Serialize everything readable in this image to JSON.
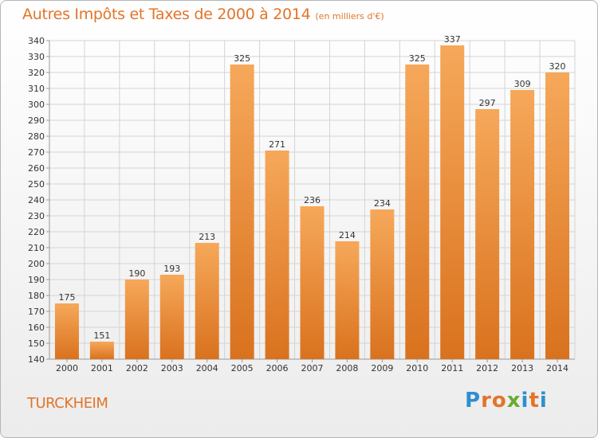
{
  "header": {
    "title": "Autres Impôts et Taxes de 2000 à 2014",
    "unit": "(en milliers d'€)"
  },
  "footer": {
    "commune": "TURCKHEIM",
    "logo_letters": [
      "P",
      "r",
      "o",
      "x",
      "i",
      "t",
      "i"
    ]
  },
  "colors": {
    "accent": "#e3742a",
    "bar_top": "#f6a85a",
    "bar_bottom": "#d9721e",
    "logo": [
      "#2e8fce",
      "#e3742a",
      "#e3742a",
      "#6cab2e",
      "#2e8fce",
      "#e3742a",
      "#2e8fce"
    ]
  },
  "chart_data": {
    "type": "bar",
    "categories": [
      "2000",
      "2001",
      "2002",
      "2003",
      "2004",
      "2005",
      "2006",
      "2007",
      "2008",
      "2009",
      "2010",
      "2011",
      "2012",
      "2013",
      "2014"
    ],
    "values": [
      175,
      151,
      190,
      193,
      213,
      325,
      271,
      236,
      214,
      234,
      325,
      337,
      297,
      309,
      320
    ],
    "ylim": [
      140,
      340
    ],
    "yticks": [
      140,
      150,
      160,
      170,
      180,
      190,
      200,
      210,
      220,
      230,
      240,
      250,
      260,
      270,
      280,
      290,
      300,
      310,
      320,
      330,
      340
    ],
    "grid": true,
    "legend": "none"
  }
}
